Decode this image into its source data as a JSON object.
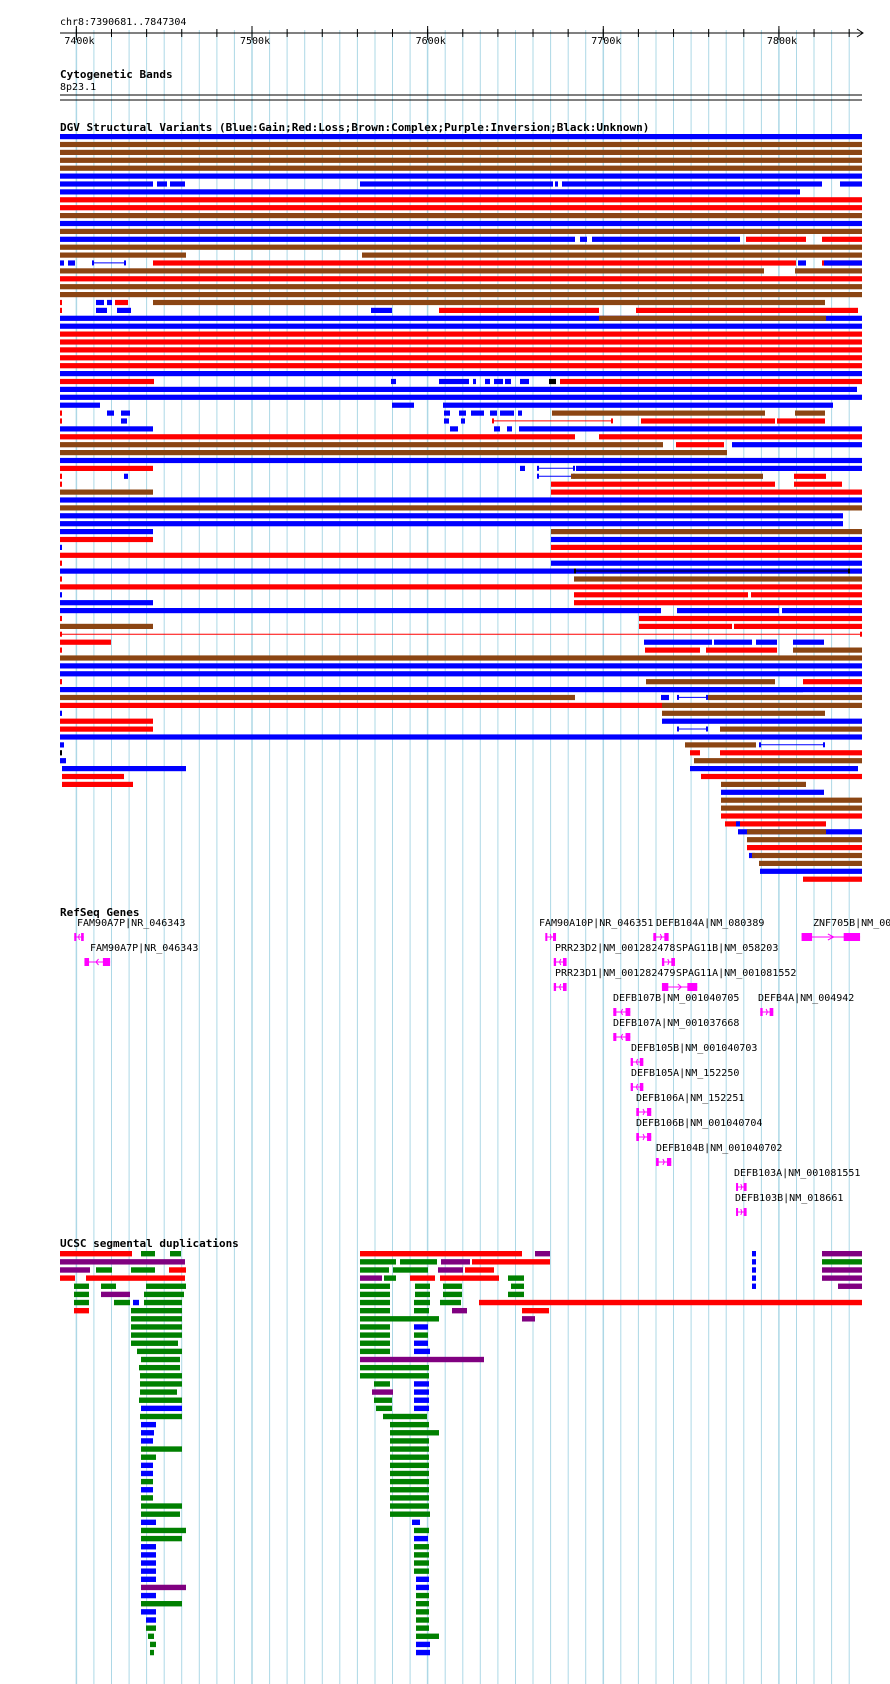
{
  "header": {
    "region": "chr8:7390681..7847304"
  },
  "ruler": {
    "start": 7390681,
    "end": 7847304,
    "ticks": [
      {
        "value": 7400000,
        "label": "7400k"
      },
      {
        "value": 7500000,
        "label": "7500k"
      },
      {
        "value": 7600000,
        "label": "7600k"
      },
      {
        "value": 7700000,
        "label": "7700k"
      },
      {
        "value": 7800000,
        "label": "7800k"
      }
    ]
  },
  "tracks": {
    "cytoband": {
      "title": "Cytogenetic Bands",
      "band": "8p23.1"
    },
    "dgv": {
      "title": "DGV Structural Variants (Blue:Gain;Red:Loss;Brown:Complex;Purple:Inversion;Black:Unknown)"
    },
    "refseq": {
      "title": "RefSeq Genes"
    },
    "segdup": {
      "title": "UCSC segmental duplications"
    }
  },
  "colors": {
    "gain": "#0000ff",
    "loss": "#ff0000",
    "complex": "#8b4513",
    "inversion": "#800080",
    "unknown": "#000000",
    "segdup_green": "#008000",
    "segdup_blue": "#0000ff",
    "segdup_red": "#ff0000",
    "segdup_purple": "#800080",
    "gene": "#ff00ff",
    "grid": "#add8e6"
  },
  "genes": [
    {
      "label": "FAM90A7P|NR_046343",
      "start": 7398800,
      "end": 7404200,
      "strand": "-"
    },
    {
      "label": "FAM90A7P|NR_046343",
      "start": 7404600,
      "end": 7419200,
      "strand": "-"
    },
    {
      "label": "FAM90A10P|NR_046351",
      "start": 7667000,
      "end": 7673100,
      "strand": "+"
    },
    {
      "label": "DEFB104A|NM_080389",
      "start": 7728500,
      "end": 7737200,
      "strand": "+"
    },
    {
      "label": "ZNF705B|NM_00",
      "start": 7812900,
      "end": 7846200,
      "strand": "+"
    },
    {
      "label": "PRR23D2|NM_001282478",
      "start": 7671800,
      "end": 7679100,
      "strand": "-"
    },
    {
      "label": "SPAG11B|NM_058203",
      "start": 7733400,
      "end": 7740800,
      "strand": "+"
    },
    {
      "label": "PRR23D1|NM_001282479",
      "start": 7671800,
      "end": 7679100,
      "strand": "-"
    },
    {
      "label": "SPAG11A|NM_001081552",
      "start": 7733400,
      "end": 7753500,
      "strand": "+"
    },
    {
      "label": "DEFB107B|NM_001040705",
      "start": 7705700,
      "end": 7715400,
      "strand": "-"
    },
    {
      "label": "DEFB4A|NM_004942",
      "start": 7789400,
      "end": 7796800,
      "strand": "+"
    },
    {
      "label": "DEFB107A|NM_001037668",
      "start": 7705700,
      "end": 7715400,
      "strand": "-"
    },
    {
      "label": "DEFB105B|NM_001040703",
      "start": 7715600,
      "end": 7722800,
      "strand": "-"
    },
    {
      "label": "DEFB105A|NM_152250",
      "start": 7715600,
      "end": 7722800,
      "strand": "-"
    },
    {
      "label": "DEFB106A|NM_152251",
      "start": 7718800,
      "end": 7727300,
      "strand": "+"
    },
    {
      "label": "DEFB106B|NM_001040704",
      "start": 7718800,
      "end": 7727300,
      "strand": "+"
    },
    {
      "label": "DEFB104B|NM_001040702",
      "start": 7730000,
      "end": 7738700,
      "strand": "+"
    },
    {
      "label": "DEFB103A|NM_001081551",
      "start": 7775600,
      "end": 7781600,
      "strand": "+"
    },
    {
      "label": "DEFB103B|NM_018661",
      "start": 7775600,
      "end": 7781600,
      "strand": "+"
    }
  ]
}
